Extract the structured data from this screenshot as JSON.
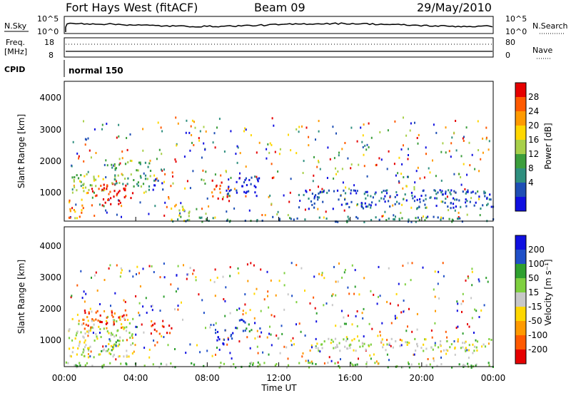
{
  "header": {
    "station": "Fort Hays West (fitACF)",
    "beam": "Beam 09",
    "date": "29/May/2010"
  },
  "strips": {
    "nsky_label": "N.Sky",
    "nsky_top": "10^5",
    "nsky_bottom": "10^0",
    "nsearch_label": "N.Search",
    "nsearch_top": "10^5",
    "nsearch_bottom": "10^0",
    "freq_label": "Freq.",
    "freq_unit": "[MHz]",
    "freq_top": "18",
    "freq_bottom": "8",
    "nave_label": "Nave",
    "nave_top": "80",
    "nave_bottom": "0",
    "cpid_label": "CPID",
    "cpid_value": "normal 150"
  },
  "chart_data": [
    {
      "type": "heatmap",
      "name": "power",
      "ylabel": "Slant Range [km]",
      "xlabel": "Time UT",
      "yticks": [
        "4000",
        "3000",
        "2000",
        "1000"
      ],
      "ylim": [
        180,
        4600
      ],
      "xlim_hours": [
        0,
        24
      ],
      "colorbar_label": "Power [dB]",
      "colorbar_ticks": [
        "28",
        "24",
        "20",
        "16",
        "12",
        "8",
        "4"
      ],
      "colorbar_colors": [
        "#e60000",
        "#ff5a00",
        "#ff9a00",
        "#ffd700",
        "#a8d04a",
        "#3c9e3c",
        "#2f8f7f",
        "#1f4fb5",
        "#1010e0"
      ],
      "color_scale": [
        "#1010e0",
        "#1f4fb5",
        "#2f8f7f",
        "#3c9e3c",
        "#a8d04a",
        "#ffd700",
        "#ff9a00",
        "#ff5a00",
        "#e60000"
      ],
      "features": [
        {
          "t0": 0.1,
          "t1": 1.1,
          "r0": 300,
          "r1": 900,
          "level": 6
        },
        {
          "t0": 0.3,
          "t1": 2.2,
          "r0": 1100,
          "r1": 1700,
          "level": 4
        },
        {
          "t0": 1.5,
          "t1": 3.8,
          "r0": 700,
          "r1": 1400,
          "level": 8
        },
        {
          "t0": 2.5,
          "t1": 4.8,
          "r0": 1300,
          "r1": 2100,
          "level": 3
        },
        {
          "t0": 4.6,
          "t1": 5.6,
          "r0": 1200,
          "r1": 1600,
          "level": 1
        },
        {
          "t0": 5.8,
          "t1": 7.0,
          "r0": 200,
          "r1": 700,
          "level": 5
        },
        {
          "t0": 8.2,
          "t1": 9.2,
          "r0": 900,
          "r1": 1500,
          "level": 7
        },
        {
          "t0": 9.0,
          "t1": 11.0,
          "r0": 1000,
          "r1": 1600,
          "level": 0
        },
        {
          "t0": 6.0,
          "t1": 24.0,
          "r0": 180,
          "r1": 350,
          "level": 2
        },
        {
          "t0": 13.0,
          "t1": 24.0,
          "r0": 600,
          "r1": 1200,
          "level": 1
        }
      ]
    },
    {
      "type": "heatmap",
      "name": "velocity",
      "ylabel": "Slant Range [km]",
      "xlabel": "Time UT",
      "yticks": [
        "4000",
        "3000",
        "2000",
        "1000"
      ],
      "ylim": [
        180,
        4600
      ],
      "xlim_hours": [
        0,
        24
      ],
      "colorbar_label": "Velocity [m s⁻¹]",
      "colorbar_ticks": [
        "200",
        "100",
        "50",
        "15",
        "-15",
        "-50",
        "-100",
        "-200"
      ],
      "colorbar_colors": [
        "#1010e0",
        "#2050c8",
        "#2fa02f",
        "#7fd040",
        "#c8c8c8",
        "#ffd700",
        "#ff9a00",
        "#ff5a00",
        "#e60000"
      ],
      "color_scale": [
        "#e60000",
        "#ff5a00",
        "#ff9a00",
        "#ffd700",
        "#c8c8c8",
        "#7fd040",
        "#2fa02f",
        "#2050c8",
        "#1010e0"
      ],
      "features": [
        {
          "t0": 0.2,
          "t1": 3.8,
          "r0": 500,
          "r1": 1800,
          "level": 4
        },
        {
          "t0": 1.0,
          "t1": 3.5,
          "r0": 1400,
          "r1": 2000,
          "level": 1
        },
        {
          "t0": 2.0,
          "t1": 3.2,
          "r0": 700,
          "r1": 1100,
          "level": 6
        },
        {
          "t0": 4.8,
          "t1": 6.0,
          "r0": 1200,
          "r1": 1600,
          "level": 0
        },
        {
          "t0": 8.3,
          "t1": 9.5,
          "r0": 900,
          "r1": 1400,
          "level": 8
        },
        {
          "t0": 9.5,
          "t1": 11.0,
          "r0": 1300,
          "r1": 1700,
          "level": 7
        },
        {
          "t0": 0.0,
          "t1": 24.0,
          "r0": 180,
          "r1": 350,
          "level": 5
        },
        {
          "t0": 14.0,
          "t1": 24.0,
          "r0": 700,
          "r1": 1100,
          "level": 4
        }
      ]
    }
  ],
  "xaxis": {
    "ticks": [
      "00:00",
      "04:00",
      "08:00",
      "12:00",
      "16:00",
      "20:00",
      "00:00"
    ],
    "label": "Time UT"
  }
}
